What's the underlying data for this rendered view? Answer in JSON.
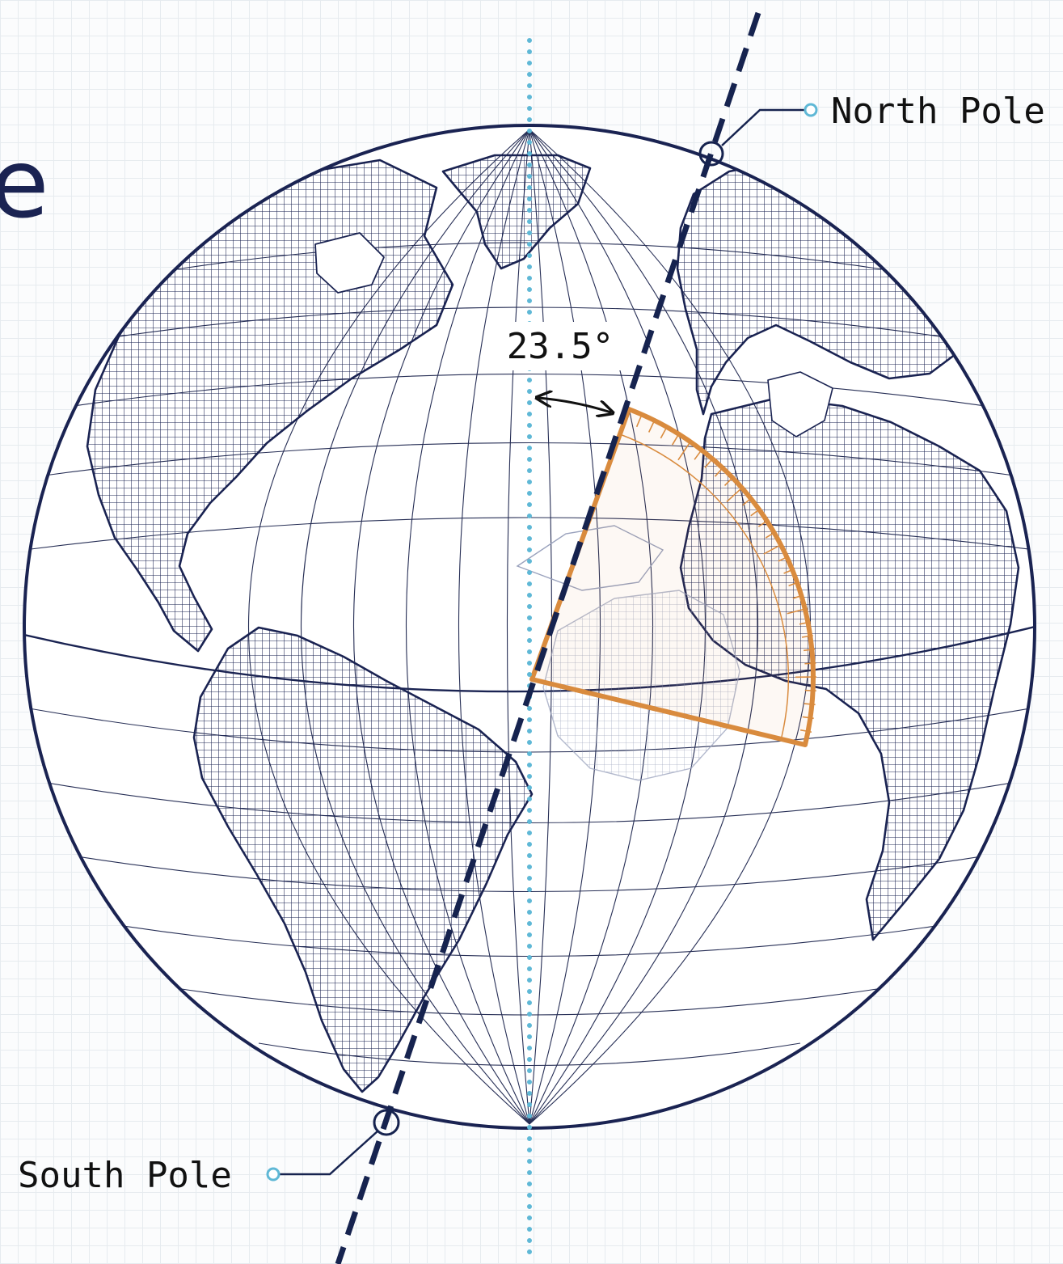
{
  "heading_fragment": "e",
  "labels": {
    "north_pole": "North Pole",
    "south_pole": "South Pole",
    "tilt_angle": "23.5°"
  },
  "colors": {
    "ink": "#1a2352",
    "axis_dashed": "#16234f",
    "vertical_reference": "#5fb8d6",
    "protractor": "#d98b3e",
    "background": "#fbfcfd",
    "grid": "#e6ebef"
  }
}
